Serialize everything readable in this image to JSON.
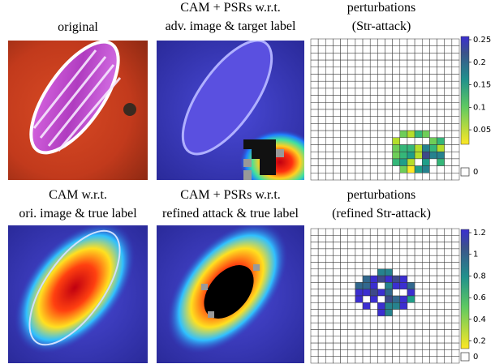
{
  "panels": [
    {
      "title": [
        "original"
      ]
    },
    {
      "title": [
        "CAM + PSRs w.r.t.",
        "adv. image & target label"
      ]
    },
    {
      "title": [
        "perturbations",
        "(Str-attack)"
      ]
    },
    {
      "title": [
        "CAM w.r.t.",
        "ori. image & true label"
      ]
    },
    {
      "title": [
        "CAM + PSRs w.r.t.",
        "refined attack & true label"
      ]
    },
    {
      "title": [
        "perturbations",
        "(refined Str-attack)"
      ]
    }
  ],
  "colorbars": [
    {
      "ticks": [
        0.25,
        0.2,
        0.15,
        0.1,
        0.05
      ],
      "zero": "0"
    },
    {
      "ticks": [
        1.2,
        1,
        0.8,
        0.6,
        0.4,
        0.2
      ],
      "zero": "0"
    }
  ]
}
